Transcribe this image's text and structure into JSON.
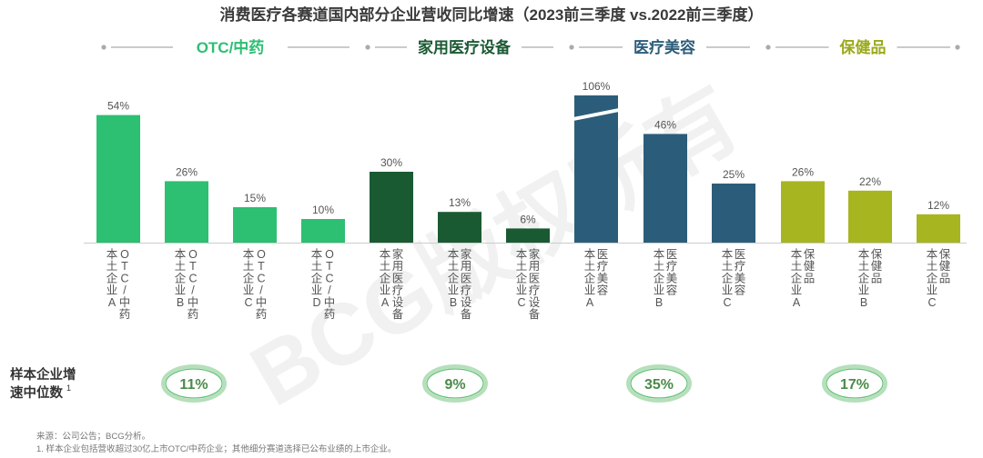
{
  "chart_data": {
    "type": "bar",
    "title": "消费医疗各赛道国内部分企业营收同比增速（2023前三季度 vs.2022前三季度）",
    "ylim": [
      0,
      60
    ],
    "grid": false,
    "legend": "none",
    "segments": [
      {
        "label": "OTC/中药",
        "color": "#2dbf72",
        "labelColor": "#2dbf72",
        "bars": [
          {
            "label": "本土企业A",
            "sub": "OTC/中药",
            "value": 54,
            "display": "54%"
          },
          {
            "label": "本土企业B",
            "sub": "OTC/中药",
            "value": 26,
            "display": "26%"
          },
          {
            "label": "本土企业C",
            "sub": "OTC/中药",
            "value": 15,
            "display": "15%"
          },
          {
            "label": "本土企业D",
            "sub": "OTC/中药",
            "value": 10,
            "display": "10%"
          }
        ]
      },
      {
        "label": "家用医疗设备",
        "color": "#1a5a33",
        "labelColor": "#1a5a33",
        "bars": [
          {
            "label": "本土企业A",
            "sub": "家用医疗设备",
            "value": 30,
            "display": "30%"
          },
          {
            "label": "本土企业B",
            "sub": "家用医疗设备",
            "value": 13,
            "display": "13%"
          },
          {
            "label": "本土企业C",
            "sub": "家用医疗设备",
            "value": 6,
            "display": "6%"
          }
        ]
      },
      {
        "label": "医疗美容",
        "color": "#2b5d7a",
        "labelColor": "#2b5d7a",
        "bars": [
          {
            "label": "本土企业A",
            "sub": "医疗美容",
            "value": 106,
            "display": "106%",
            "broken": true
          },
          {
            "label": "本土企业B",
            "sub": "医疗美容",
            "value": 46,
            "display": "46%"
          },
          {
            "label": "本土企业C",
            "sub": "医疗美容",
            "value": 25,
            "display": "25%"
          }
        ]
      },
      {
        "label": "保健品",
        "color": "#a7b521",
        "labelColor": "#9aaa1a",
        "bars": [
          {
            "label": "本土企业A",
            "sub": "保健品",
            "value": 26,
            "display": "26%"
          },
          {
            "label": "本土企业B",
            "sub": "保健品",
            "value": 22,
            "display": "22%"
          },
          {
            "label": "本土企业C",
            "sub": "保健品",
            "value": 12,
            "display": "12%"
          }
        ]
      }
    ],
    "median": {
      "label_line1": "样本企业增",
      "label_line2": "速中位数",
      "footnote_mark": "1",
      "values": [
        "11%",
        "9%",
        "35%",
        "17%"
      ]
    },
    "watermark": "BCG版权所有"
  },
  "notes": {
    "source": "来源：公司公告；BCG分析。",
    "footnote": "1. 样本企业包括营收超过30亿上市OTC/中药企业；其他细分赛道选择已公布业绩的上市企业。"
  }
}
